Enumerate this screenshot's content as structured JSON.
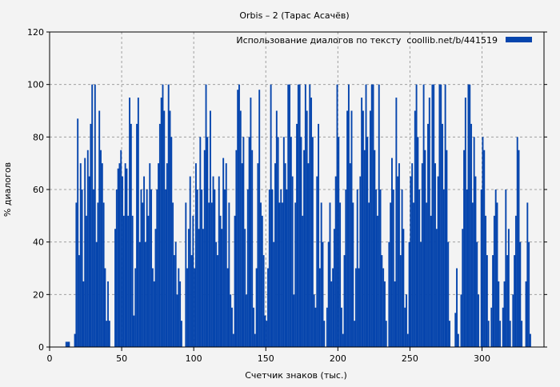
{
  "chart_data": {
    "type": "bar",
    "title": "Orbis – 2 (Тарас Асачёв)",
    "xlabel": "Счетчик знаков (тыс.)",
    "ylabel": "% диалогов",
    "xlim": [
      0,
      343
    ],
    "ylim": [
      0,
      120
    ],
    "xticks": [
      0,
      50,
      100,
      150,
      200,
      250,
      300
    ],
    "yticks": [
      0,
      20,
      40,
      60,
      80,
      100,
      120
    ],
    "grid": true,
    "legend_position": "top-right",
    "colors": {
      "bar": "#0645ad",
      "background": "#f3f3f3",
      "grid": "#a0a0a0"
    },
    "series": [
      {
        "name": "Использование диалогов по тексту  coollib.net/b/441519",
        "x_start": 0,
        "x_step": 1,
        "values": [
          0,
          0,
          0,
          0,
          0,
          0,
          0,
          0,
          0,
          0,
          0,
          2,
          2,
          2,
          0,
          0,
          0,
          5,
          55,
          87,
          35,
          70,
          60,
          25,
          72,
          50,
          75,
          65,
          85,
          100,
          60,
          100,
          40,
          55,
          90,
          75,
          70,
          55,
          30,
          10,
          25,
          10,
          0,
          0,
          0,
          45,
          60,
          68,
          70,
          75,
          65,
          50,
          70,
          68,
          50,
          95,
          85,
          50,
          12,
          30,
          85,
          95,
          40,
          60,
          55,
          65,
          40,
          60,
          50,
          70,
          60,
          30,
          25,
          45,
          60,
          70,
          85,
          95,
          100,
          90,
          60,
          70,
          100,
          90,
          80,
          55,
          35,
          40,
          20,
          30,
          25,
          10,
          0,
          0,
          55,
          30,
          45,
          65,
          35,
          50,
          30,
          70,
          60,
          45,
          80,
          60,
          45,
          75,
          100,
          80,
          55,
          90,
          55,
          65,
          60,
          40,
          35,
          65,
          50,
          45,
          72,
          60,
          70,
          30,
          55,
          20,
          15,
          5,
          50,
          75,
          98,
          100,
          90,
          70,
          80,
          45,
          20,
          60,
          80,
          95,
          75,
          15,
          5,
          30,
          70,
          98,
          55,
          50,
          35,
          12,
          10,
          30,
          60,
          100,
          60,
          40,
          70,
          90,
          80,
          55,
          60,
          55,
          80,
          70,
          60,
          100,
          100,
          80,
          65,
          20,
          55,
          85,
          100,
          100,
          80,
          50,
          75,
          100,
          90,
          70,
          100,
          95,
          80,
          20,
          15,
          65,
          85,
          30,
          55,
          40,
          10,
          0,
          15,
          40,
          55,
          25,
          30,
          45,
          65,
          100,
          80,
          55,
          15,
          5,
          35,
          60,
          90,
          100,
          70,
          90,
          55,
          10,
          30,
          60,
          30,
          65,
          95,
          90,
          75,
          100,
          80,
          55,
          90,
          100,
          100,
          75,
          60,
          50,
          100,
          60,
          35,
          30,
          25,
          10,
          0,
          40,
          55,
          72,
          60,
          25,
          95,
          65,
          70,
          35,
          60,
          45,
          15,
          20,
          5,
          40,
          65,
          70,
          55,
          90,
          100,
          80,
          60,
          40,
          70,
          100,
          75,
          55,
          85,
          95,
          50,
          100,
          100,
          70,
          45,
          65,
          100,
          100,
          85,
          60,
          100,
          75,
          40,
          10,
          0,
          0,
          0,
          13,
          30,
          5,
          0,
          20,
          45,
          75,
          95,
          60,
          100,
          100,
          85,
          55,
          80,
          65,
          40,
          20,
          0,
          60,
          80,
          75,
          50,
          35,
          10,
          0,
          15,
          35,
          50,
          60,
          55,
          25,
          10,
          0,
          15,
          25,
          60,
          35,
          45,
          10,
          0,
          20,
          35,
          50,
          80,
          75,
          40,
          10,
          0,
          0,
          25,
          55,
          40,
          5,
          0
        ]
      }
    ]
  }
}
